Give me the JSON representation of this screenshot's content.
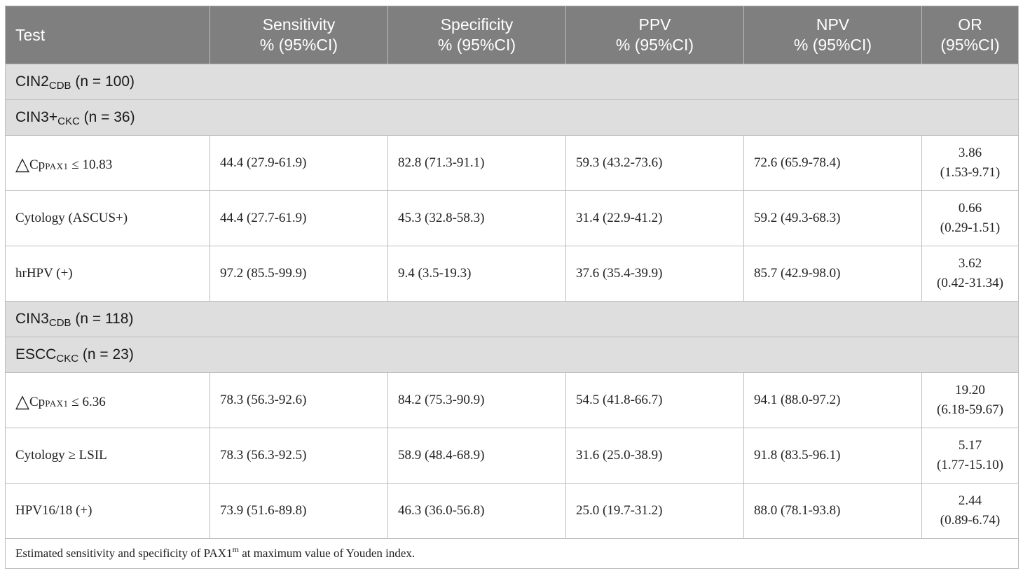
{
  "header": {
    "test": "Test",
    "sensitivity": [
      "Sensitivity",
      "% (95%CI)"
    ],
    "specificity": [
      "Specificity",
      "% (95%CI)"
    ],
    "ppv": [
      "PPV",
      "% (95%CI)"
    ],
    "npv": [
      "NPV",
      "% (95%CI)"
    ],
    "or": [
      "OR",
      "(95%CI)"
    ]
  },
  "groups": [
    {
      "main": "CIN2",
      "sub": "CDB",
      "rest": " (n = 100)"
    },
    {
      "main": "CIN3+",
      "sub": "CKC",
      "rest": " (n = 36)"
    },
    {
      "main": "CIN3",
      "sub": "CDB",
      "rest": " (n = 118)"
    },
    {
      "main": "ESCC",
      "sub": "CKC",
      "rest": " (n = 23)"
    }
  ],
  "rows_cin3": [
    {
      "test_symbol": "△",
      "test_main": "Cp",
      "test_sub": "PAX1",
      "test_rest": " ≤ 10.83",
      "sensitivity": "44.4 (27.9-61.9)",
      "specificity": "82.8 (71.3-91.1)",
      "ppv": "59.3 (43.2-73.6)",
      "npv": "72.6 (65.9-78.4)",
      "or_value": "3.86",
      "or_ci": "(1.53-9.71)"
    },
    {
      "test": "Cytology (ASCUS+)",
      "sensitivity": "44.4 (27.7-61.9)",
      "specificity": "45.3 (32.8-58.3)",
      "ppv": "31.4 (22.9-41.2)",
      "npv": "59.2 (49.3-68.3)",
      "or_value": "0.66",
      "or_ci": "(0.29-1.51)"
    },
    {
      "test": "hrHPV (+)",
      "sensitivity": "97.2 (85.5-99.9)",
      "specificity": "9.4 (3.5-19.3)",
      "ppv": "37.6 (35.4-39.9)",
      "npv": "85.7 (42.9-98.0)",
      "or_value": "3.62",
      "or_ci": "(0.42-31.34)"
    }
  ],
  "rows_escc": [
    {
      "test_symbol": "△",
      "test_main": "Cp",
      "test_sub": "PAX1",
      "test_rest": " ≤ 6.36",
      "sensitivity": "78.3 (56.3-92.6)",
      "specificity": "84.2 (75.3-90.9)",
      "ppv": "54.5 (41.8-66.7)",
      "npv": "94.1 (88.0-97.2)",
      "or_value": "19.20",
      "or_ci": "(6.18-59.67)"
    },
    {
      "test": "Cytology ≥ LSIL",
      "sensitivity": "78.3 (56.3-92.5)",
      "specificity": "58.9 (48.4-68.9)",
      "ppv": "31.6 (25.0-38.9)",
      "npv": "91.8 (83.5-96.1)",
      "or_value": "5.17",
      "or_ci": "(1.77-15.10)"
    },
    {
      "test": "HPV16/18 (+)",
      "sensitivity": "73.9 (51.6-89.8)",
      "specificity": "46.3 (36.0-56.8)",
      "ppv": "25.0 (19.7-31.2)",
      "npv": "88.0 (78.1-93.8)",
      "or_value": "2.44",
      "or_ci": "(0.89-6.74)"
    }
  ],
  "footnote": {
    "before": "Estimated sensitivity and specificity of PAX1",
    "sup": "m",
    "after": " at maximum value of Youden index."
  }
}
